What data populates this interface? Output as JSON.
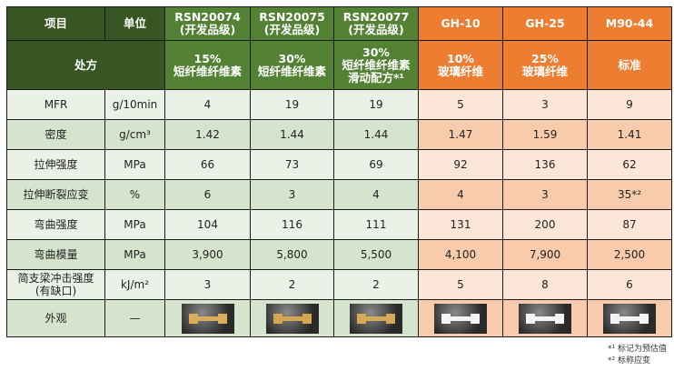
{
  "header": {
    "item": "项目",
    "unit": "单位",
    "formula": "处方",
    "products": [
      {
        "name": "RSN20074",
        "grade": "(开发品级)",
        "f1": "15%",
        "f2": "短纤维纤维素",
        "f3": ""
      },
      {
        "name": "RSN20075",
        "grade": "(开发品级)",
        "f1": "30%",
        "f2": "短纤维纤维素",
        "f3": ""
      },
      {
        "name": "RSN20077",
        "grade": "(开发品级)",
        "f1": "30%",
        "f2": "短纤维纤维素",
        "f3": "滑动配方*¹"
      },
      {
        "name": "GH-10",
        "grade": "",
        "f1": "10%",
        "f2": "玻璃纤维",
        "f3": ""
      },
      {
        "name": "GH-25",
        "grade": "",
        "f1": "25%",
        "f2": "玻璃纤维",
        "f3": ""
      },
      {
        "name": "M90-44",
        "grade": "",
        "f1": "",
        "f2": "标准",
        "f3": ""
      }
    ]
  },
  "rows": [
    {
      "label": "MFR",
      "unit": "g/10min",
      "values": [
        "4",
        "19",
        "19",
        "5",
        "3",
        "9"
      ]
    },
    {
      "label": "密度",
      "unit": "g/cm³",
      "values": [
        "1.42",
        "1.44",
        "1.44",
        "1.47",
        "1.59",
        "1.41"
      ]
    },
    {
      "label": "拉伸强度",
      "unit": "MPa",
      "values": [
        "66",
        "73",
        "69",
        "92",
        "136",
        "62"
      ]
    },
    {
      "label": "拉伸断裂应变",
      "unit": "%",
      "values": [
        "6",
        "3",
        "4",
        "4",
        "3",
        "35*²"
      ]
    },
    {
      "label": "弯曲强度",
      "unit": "MPa",
      "values": [
        "104",
        "116",
        "111",
        "131",
        "200",
        "87"
      ]
    },
    {
      "label": "弯曲模量",
      "unit": "MPa",
      "values": [
        "3,900",
        "5,800",
        "5,500",
        "4,100",
        "7,900",
        "2,500"
      ]
    },
    {
      "label": "简支梁冲击强度\n(有缺口)",
      "unit": "kJ/m²",
      "values": [
        "3",
        "2",
        "2",
        "5",
        "8",
        "6"
      ]
    }
  ],
  "appearance": {
    "label": "外观",
    "unit": "—",
    "specimen_colors": [
      "#d9ad5a",
      "#d4a64f",
      "#d6a957",
      "#f4f4f4",
      "#f4f4f4",
      "#f4f4f4"
    ]
  },
  "notes": [
    "*¹ 标记为预估值",
    "*² 标称应变"
  ],
  "colors": {
    "dark_green": "#375623",
    "green": "#548235",
    "orange": "#ed7d31"
  }
}
